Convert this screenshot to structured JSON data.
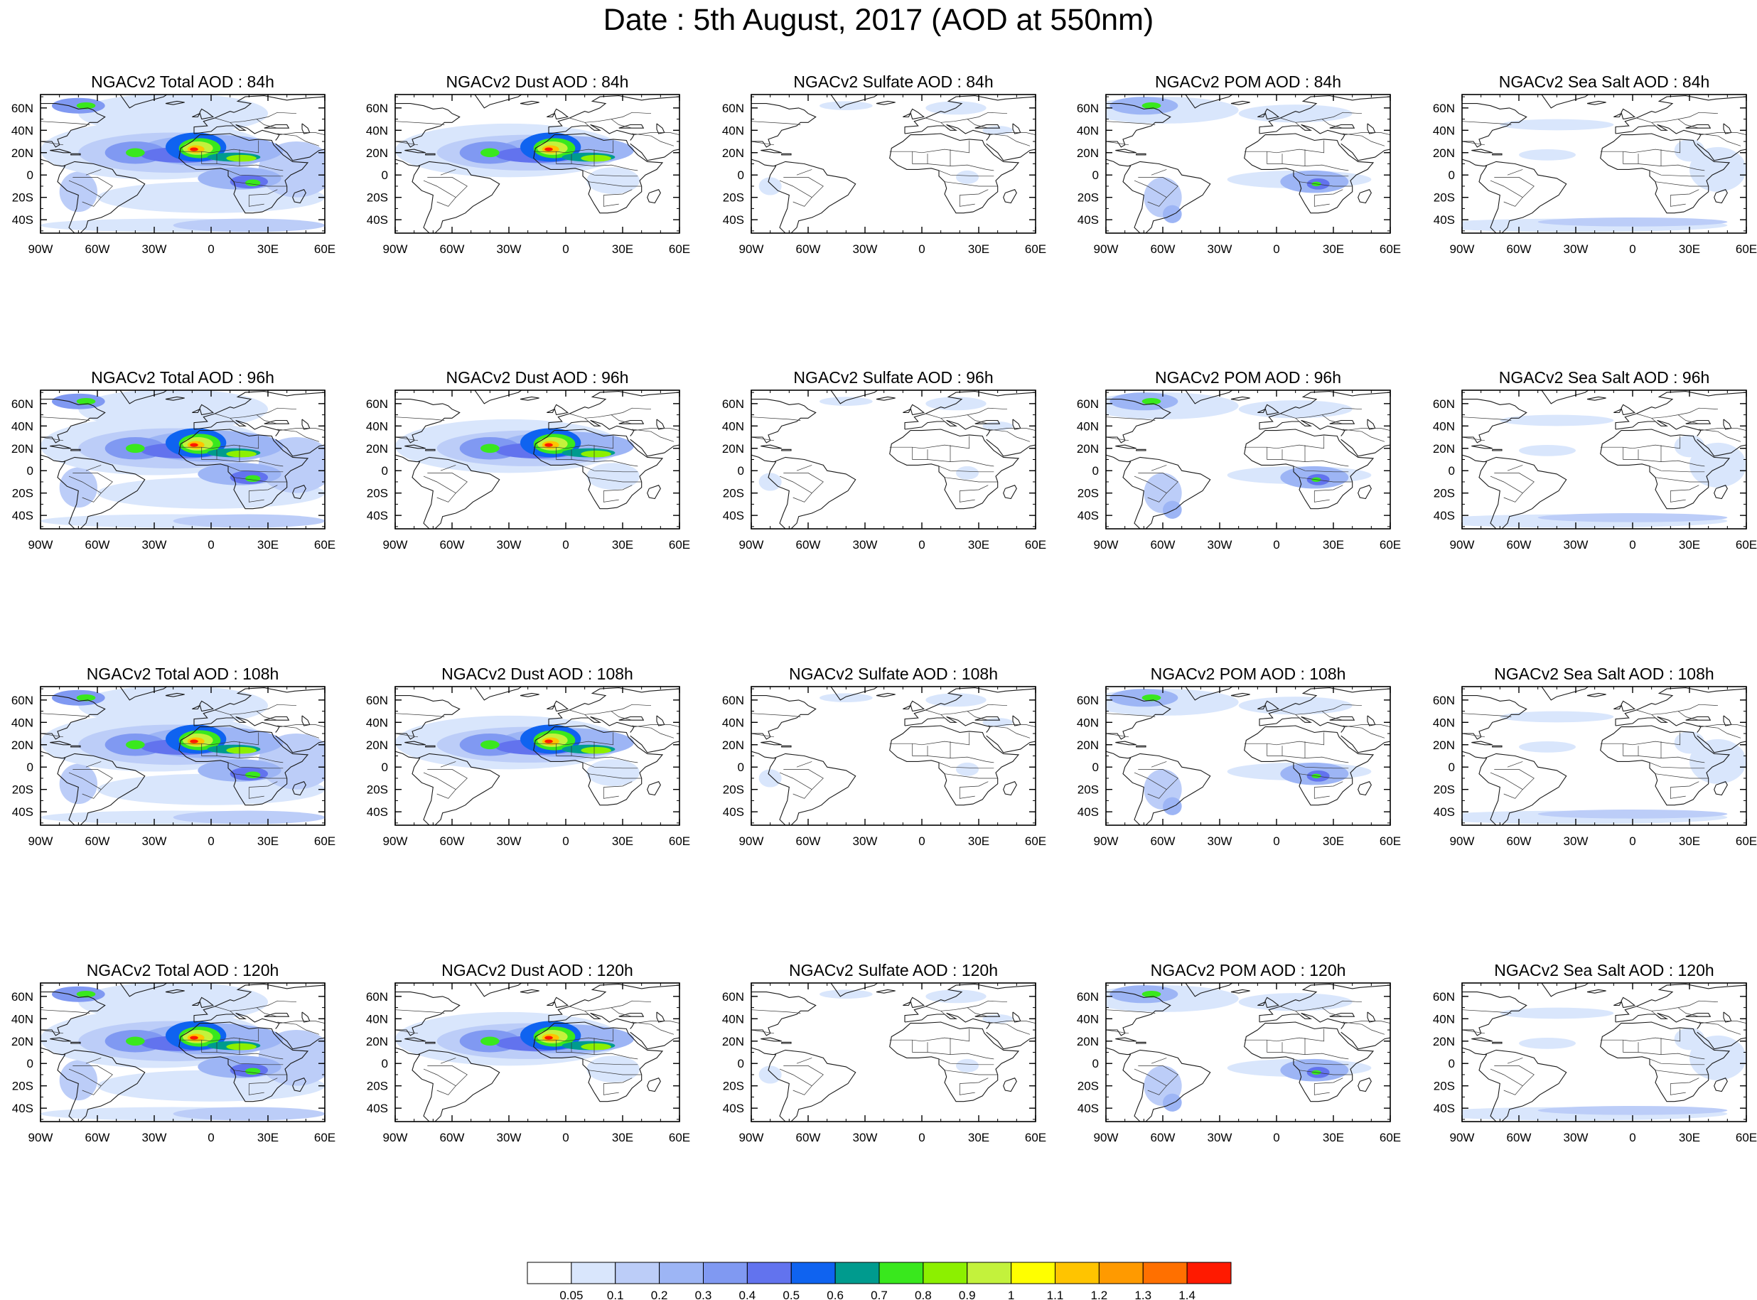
{
  "figure": {
    "title": "Date : 5th August, 2017 (AOD at 550nm)"
  },
  "panels": [
    [
      "NGACv2 Total AOD : 84h",
      "NGACv2 Dust AOD : 84h",
      "NGACv2 Sulfate AOD : 84h",
      "NGACv2 POM AOD : 84h",
      "NGACv2 Sea Salt AOD : 84h"
    ],
    [
      "NGACv2 Total AOD : 96h",
      "NGACv2 Dust AOD : 96h",
      "NGACv2 Sulfate AOD : 96h",
      "NGACv2 POM AOD : 96h",
      "NGACv2 Sea Salt AOD : 96h"
    ],
    [
      "NGACv2 Total AOD : 108h",
      "NGACv2 Dust AOD : 108h",
      "NGACv2 Sulfate AOD : 108h",
      "NGACv2 POM AOD : 108h",
      "NGACv2 Sea Salt AOD : 108h"
    ],
    [
      "NGACv2 Total AOD : 120h",
      "NGACv2 Dust AOD : 120h",
      "NGACv2 Sulfate AOD : 120h",
      "NGACv2 POM AOD : 120h",
      "NGACv2 Sea Salt  AOD : 120h"
    ]
  ],
  "axes": {
    "lon_ticks": [
      "90W",
      "60W",
      "30W",
      "0",
      "30E",
      "60E"
    ],
    "lat_ticks": [
      "60N",
      "40N",
      "20N",
      "0",
      "20S",
      "40S"
    ],
    "lon_range": [
      -90,
      60
    ],
    "lat_range": [
      -52,
      72
    ]
  },
  "colorbar": {
    "levels": [
      "0.05",
      "0.1",
      "0.2",
      "0.3",
      "0.4",
      "0.5",
      "0.6",
      "0.7",
      "0.8",
      "0.9",
      "1",
      "1.1",
      "1.2",
      "1.3",
      "1.4"
    ],
    "colors": [
      "#ffffff",
      "#d9e6fc",
      "#bccdf8",
      "#9db5f5",
      "#8099f2",
      "#6273ee",
      "#0f63f0",
      "#009b8e",
      "#39e81d",
      "#8cf000",
      "#c3f23c",
      "#ffff00",
      "#ffc400",
      "#ff9a00",
      "#ff7000",
      "#ff1a00"
    ]
  }
}
